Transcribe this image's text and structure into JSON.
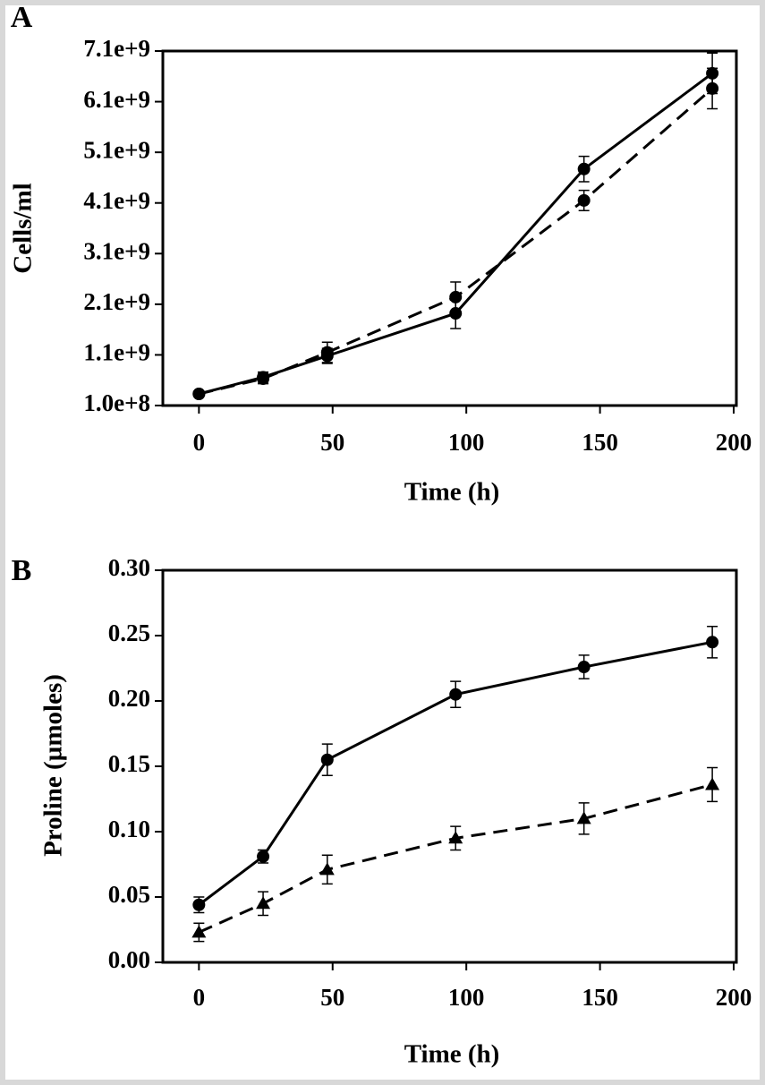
{
  "chart_data": [
    {
      "type": "line",
      "panel_label": "A",
      "x_label": "Time (h)",
      "y_label": "Cells/ml",
      "x": [
        0,
        24,
        48,
        96,
        144,
        192
      ],
      "series": [
        {
          "color": "#000000",
          "dashed": false,
          "marker": "circle",
          "values": [
            330000000,
            660000000,
            1080000000,
            1920000000,
            4770000000,
            6660000000
          ],
          "errors": [
            50000000,
            100000000,
            150000000,
            300000000,
            250000000,
            400000000
          ]
        },
        {
          "color": "#000000",
          "dashed": true,
          "marker": "circle",
          "values": [
            330000000,
            630000000,
            1150000000,
            2240000000,
            4150000000,
            6360000000
          ],
          "errors": [
            50000000,
            100000000,
            200000000,
            300000000,
            200000000,
            400000000
          ]
        }
      ],
      "xlim": [
        -13.5,
        201
      ],
      "ylim": [
        100000000,
        7100000000
      ],
      "xticks": [
        0,
        50,
        100,
        150,
        200
      ],
      "yticks": [
        {
          "value": 100000000,
          "label": "1.0e+8"
        },
        {
          "value": 1100000000,
          "label": "1.1e+9"
        },
        {
          "value": 2100000000,
          "label": "2.1e+9"
        },
        {
          "value": 3100000000,
          "label": "3.1e+9"
        },
        {
          "value": 4100000000,
          "label": "4.1e+9"
        },
        {
          "value": 5100000000,
          "label": "5.1e+9"
        },
        {
          "value": 6100000000,
          "label": "6.1e+9"
        },
        {
          "value": 7100000000,
          "label": "7.1e+9"
        }
      ]
    },
    {
      "type": "line",
      "panel_label": "B",
      "x_label": "Time (h)",
      "y_label": "Proline (µmoles)",
      "x": [
        0,
        24,
        48,
        96,
        144,
        192
      ],
      "series": [
        {
          "color": "#000000",
          "dashed": false,
          "marker": "circle",
          "values": [
            0.044,
            0.081,
            0.155,
            0.205,
            0.226,
            0.245
          ],
          "errors": [
            0.006,
            0.005,
            0.012,
            0.01,
            0.009,
            0.012
          ]
        },
        {
          "color": "#000000",
          "dashed": true,
          "marker": "triangle",
          "values": [
            0.023,
            0.045,
            0.071,
            0.095,
            0.11,
            0.136
          ],
          "errors": [
            0.007,
            0.009,
            0.011,
            0.009,
            0.012,
            0.013
          ]
        }
      ],
      "xlim": [
        -13.5,
        201
      ],
      "ylim": [
        0,
        0.3
      ],
      "xticks": [
        0,
        50,
        100,
        150,
        200
      ],
      "yticks": [
        {
          "value": 0,
          "label": "0.00"
        },
        0.05,
        {
          "value": 0.1,
          "label": "0.10"
        },
        0.15,
        {
          "value": 0.2,
          "label": "0.20"
        },
        0.25,
        {
          "value": 0.3,
          "label": "0.30"
        }
      ]
    }
  ]
}
